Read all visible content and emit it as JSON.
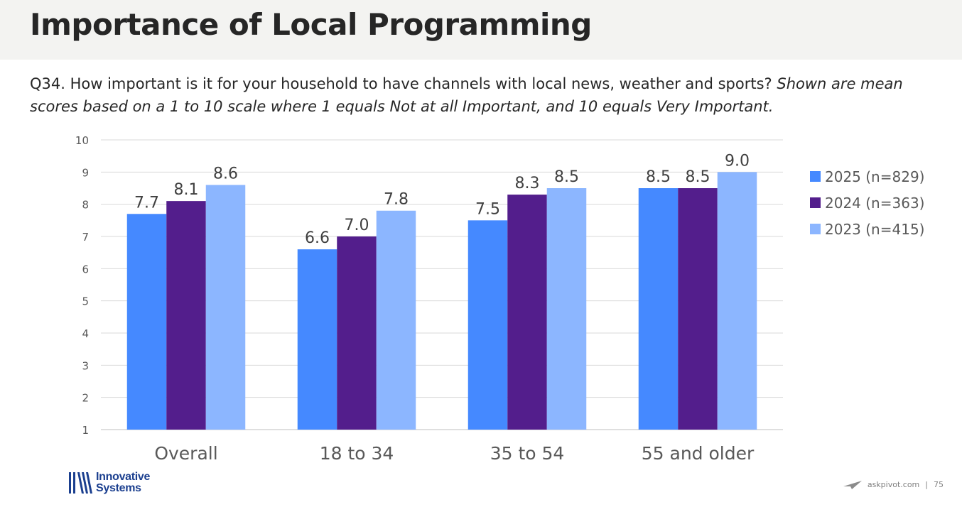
{
  "header": {
    "title": "Importance of Local Programming"
  },
  "question": {
    "text": "Q34. How important is it for your household to have channels with local news, weather and sports?",
    "note": "Shown are mean scores based on a 1 to 10 scale where 1 equals Not at all Important, and 10 equals Very Important."
  },
  "chart_data": {
    "type": "bar",
    "categories": [
      "Overall",
      "18 to 34",
      "35 to 54",
      "55 and older"
    ],
    "series": [
      {
        "name": "2025 (n=829)",
        "color": "#4589ff",
        "values": [
          7.7,
          6.6,
          7.5,
          8.5
        ]
      },
      {
        "name": "2024 (n=363)",
        "color": "#531e8c",
        "values": [
          8.1,
          7.0,
          8.3,
          8.5
        ]
      },
      {
        "name": "2023 (n=415)",
        "color": "#8cb6ff",
        "values": [
          8.6,
          7.8,
          8.5,
          9.0
        ]
      }
    ],
    "y_ticks": [
      "1",
      "2",
      "3",
      "4",
      "5",
      "6",
      "7",
      "8",
      "9",
      "10"
    ],
    "ylim": [
      1,
      10
    ],
    "grid": true,
    "legend": "right"
  },
  "logo": {
    "line1": "Innovative",
    "line2": "Systems"
  },
  "footer": {
    "site": "askpivot.com",
    "separator": "|",
    "page": "75"
  }
}
